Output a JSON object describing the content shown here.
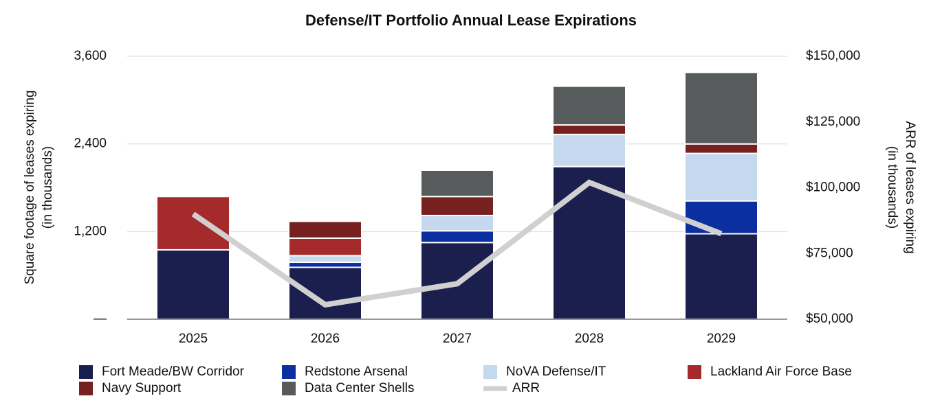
{
  "chart_data": {
    "type": "stacked_bar_line",
    "title": "Defense/IT Portfolio Annual Lease Expirations",
    "y_label": [
      "Square footage of leases expiring",
      "(in thousands)"
    ],
    "y2_label": [
      "ARR of leases expiring",
      "(in thousands)"
    ],
    "categories": [
      "2025",
      "2026",
      "2027",
      "2028",
      "2029"
    ],
    "series": [
      {
        "name": "Fort Meade/BW Corridor",
        "color": "#1a1f4e",
        "values": [
          950,
          710,
          1050,
          2090,
          1170
        ]
      },
      {
        "name": "Redstone Arsenal",
        "color": "#0b2fa0",
        "values": [
          0,
          70,
          160,
          0,
          450
        ]
      },
      {
        "name": "NoVA Defense/IT",
        "color": "#c5d8ee",
        "values": [
          0,
          90,
          210,
          440,
          650
        ]
      },
      {
        "name": "Lackland Air Force Base",
        "color": "#a42a2c",
        "values": [
          730,
          240,
          0,
          0,
          0
        ]
      },
      {
        "name": "Navy Support",
        "color": "#76201f",
        "values": [
          0,
          230,
          260,
          130,
          130
        ]
      },
      {
        "name": "Data Center Shells",
        "color": "#575b5c",
        "values": [
          0,
          0,
          360,
          530,
          980
        ]
      },
      {
        "name": "ARR",
        "color": "#d0d0d0",
        "type": "line",
        "axis": "y2",
        "values": [
          90000,
          55500,
          63500,
          102000,
          82500
        ]
      }
    ],
    "ylim": [
      0,
      3600
    ],
    "yticks": [
      {
        "value": 0,
        "label": "—"
      },
      {
        "value": 1200,
        "label": "1,200"
      },
      {
        "value": 2400,
        "label": "2,400"
      },
      {
        "value": 3600,
        "label": "3,600"
      }
    ],
    "y2lim": [
      50000,
      150000
    ],
    "y2ticks": [
      {
        "value": 50000,
        "label": "$50,000"
      },
      {
        "value": 75000,
        "label": "$75,000"
      },
      {
        "value": 100000,
        "label": "$100,000"
      },
      {
        "value": 125000,
        "label": "$125,000"
      },
      {
        "value": 150000,
        "label": "$150,000"
      }
    ],
    "grid": true,
    "legend": "bottom"
  }
}
